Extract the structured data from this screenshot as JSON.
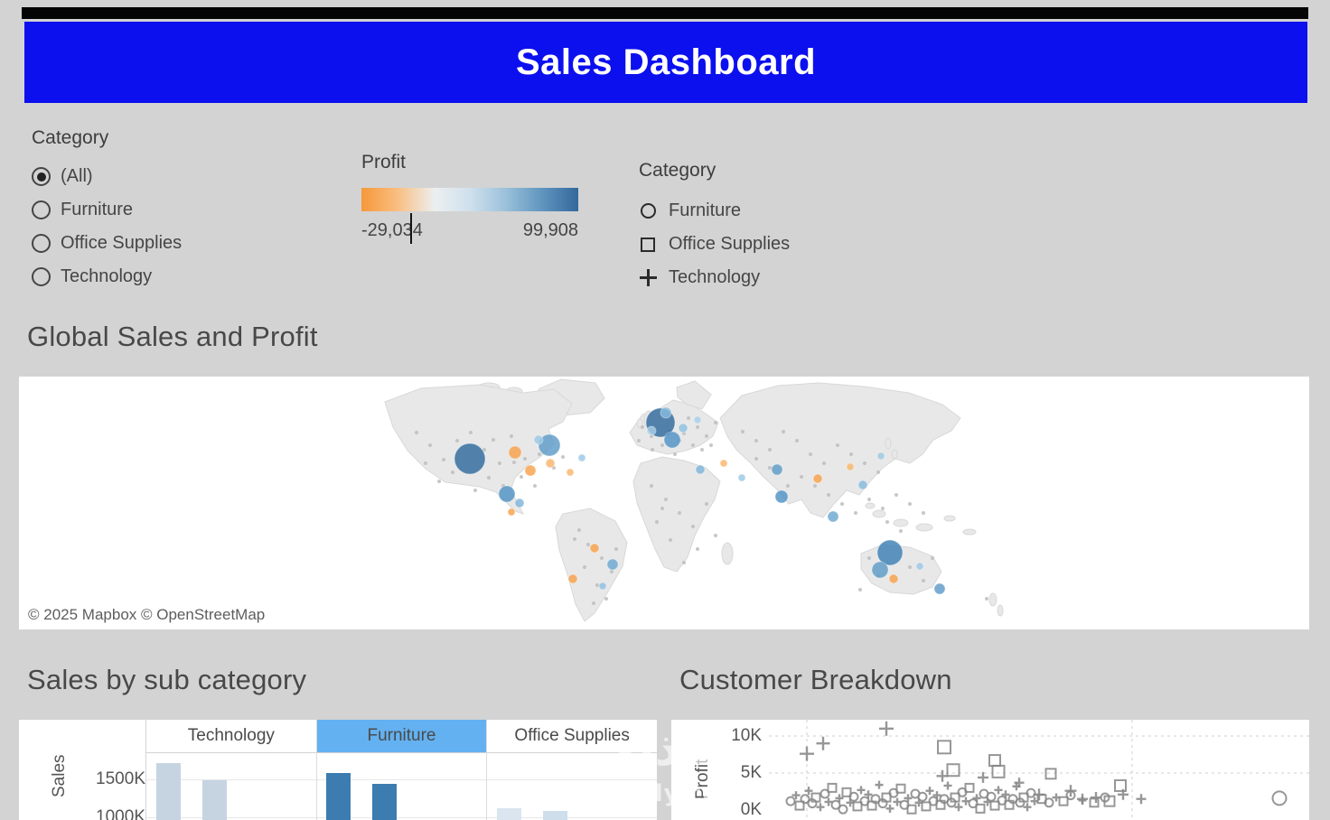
{
  "header": {
    "title": "Sales Dashboard"
  },
  "filters": {
    "category": {
      "label": "Category",
      "options": [
        {
          "label": "(All)",
          "selected": true
        },
        {
          "label": "Furniture",
          "selected": false
        },
        {
          "label": "Office Supplies",
          "selected": false
        },
        {
          "label": "Technology",
          "selected": false
        }
      ]
    },
    "profit": {
      "label": "Profit",
      "min": "-29,034",
      "max": "99,908"
    },
    "shapes": {
      "label": "Category",
      "items": [
        {
          "label": "Furniture",
          "shape": "circle"
        },
        {
          "label": "Office Supplies",
          "shape": "square"
        },
        {
          "label": "Technology",
          "shape": "plus"
        }
      ]
    }
  },
  "sections": {
    "map": {
      "title": "Global Sales and Profit",
      "attribution": "© 2025 Mapbox  © OpenStreetMap"
    },
    "subcategory": {
      "title": "Sales by sub category"
    },
    "breakdown": {
      "title": "Customer Breakdown"
    }
  },
  "watermark": {
    "text": "نفذلي",
    "domain": "nafezly.com"
  },
  "chart_data": [
    {
      "id": "global_sales_profit",
      "type": "map-scatter",
      "title": "Global Sales and Profit",
      "color_scale": {
        "measure": "Profit",
        "min": "-29,034",
        "max": "99,908",
        "negative_color": "#f6a14b",
        "positive_color": "#2f6a9e"
      },
      "bubbles": [
        [
          499,
          91,
          17,
          "#2f6a9e"
        ],
        [
          587,
          76,
          12,
          "#5d9bc7"
        ],
        [
          575,
          70,
          5,
          "#9cc8e4"
        ],
        [
          710,
          51,
          16,
          "#2f6a9e"
        ],
        [
          723,
          70,
          9,
          "#4f93c4"
        ],
        [
          716,
          40,
          6,
          "#86bbdd"
        ],
        [
          700,
          60,
          5,
          "#a9cfe8"
        ],
        [
          735,
          57,
          5,
          "#90c1e0"
        ],
        [
          751,
          48,
          4,
          "#a9cfe8"
        ],
        [
          549,
          84,
          7,
          "#f6a14b"
        ],
        [
          566,
          104,
          6,
          "#f6a14b"
        ],
        [
          588,
          96,
          5,
          "#f8b66e"
        ],
        [
          540,
          130,
          9,
          "#4f93c4"
        ],
        [
          554,
          140,
          5,
          "#7db4d9"
        ],
        [
          545,
          150,
          4,
          "#f6a14b"
        ],
        [
          610,
          106,
          4,
          "#f8b66e"
        ],
        [
          623,
          90,
          4,
          "#9cc8e4"
        ],
        [
          637,
          190,
          5,
          "#f6a14b"
        ],
        [
          657,
          208,
          6,
          "#6aa7d1"
        ],
        [
          613,
          224,
          5,
          "#f6a14b"
        ],
        [
          646,
          232,
          4,
          "#8fc0df"
        ],
        [
          754,
          103,
          5,
          "#7db4d9"
        ],
        [
          780,
          96,
          4,
          "#f8b66e"
        ],
        [
          800,
          112,
          4,
          "#9cc8e4"
        ],
        [
          839,
          103,
          6,
          "#5d9bc7"
        ],
        [
          884,
          113,
          5,
          "#f6a14b"
        ],
        [
          844,
          133,
          7,
          "#4f93c4"
        ],
        [
          901,
          155,
          6,
          "#6aa7d1"
        ],
        [
          934,
          120,
          5,
          "#86bbdd"
        ],
        [
          920,
          100,
          4,
          "#f8b66e"
        ],
        [
          954,
          88,
          4,
          "#9cc8e4"
        ],
        [
          964,
          195,
          14,
          "#3d7fb4"
        ],
        [
          953,
          214,
          9,
          "#5d9bc7"
        ],
        [
          968,
          224,
          5,
          "#f6a14b"
        ],
        [
          1019,
          235,
          6,
          "#5d9bc7"
        ],
        [
          997,
          210,
          4,
          "#9cc8e4"
        ]
      ],
      "city_dots": [
        [
          440,
          62
        ],
        [
          455,
          76
        ],
        [
          470,
          92
        ],
        [
          485,
          71
        ],
        [
          500,
          62
        ],
        [
          515,
          81
        ],
        [
          532,
          96
        ],
        [
          545,
          66
        ],
        [
          520,
          112
        ],
        [
          505,
          126
        ],
        [
          536,
          121
        ],
        [
          560,
          91
        ],
        [
          576,
          86
        ],
        [
          592,
          101
        ],
        [
          602,
          89
        ],
        [
          480,
          106
        ],
        [
          465,
          116
        ],
        [
          450,
          96
        ],
        [
          556,
          111
        ],
        [
          571,
          121
        ],
        [
          525,
          70
        ],
        [
          548,
          95
        ],
        [
          620,
          170
        ],
        [
          630,
          186
        ],
        [
          645,
          201
        ],
        [
          656,
          216
        ],
        [
          640,
          231
        ],
        [
          626,
          211
        ],
        [
          661,
          191
        ],
        [
          650,
          246
        ],
        [
          636,
          251
        ],
        [
          615,
          180
        ],
        [
          690,
          56
        ],
        [
          700,
          66
        ],
        [
          712,
          76
        ],
        [
          720,
          61
        ],
        [
          731,
          71
        ],
        [
          741,
          46
        ],
        [
          751,
          56
        ],
        [
          761,
          66
        ],
        [
          771,
          51
        ],
        [
          746,
          76
        ],
        [
          756,
          81
        ],
        [
          701,
          81
        ],
        [
          686,
          71
        ],
        [
          726,
          86
        ],
        [
          766,
          76
        ],
        [
          736,
          63
        ],
        [
          700,
          121
        ],
        [
          716,
          136
        ],
        [
          731,
          151
        ],
        [
          746,
          166
        ],
        [
          721,
          181
        ],
        [
          706,
          161
        ],
        [
          761,
          141
        ],
        [
          751,
          191
        ],
        [
          736,
          206
        ],
        [
          771,
          176
        ],
        [
          712,
          146
        ],
        [
          801,
          61
        ],
        [
          816,
          71
        ],
        [
          831,
          81
        ],
        [
          846,
          61
        ],
        [
          861,
          71
        ],
        [
          876,
          86
        ],
        [
          891,
          96
        ],
        [
          906,
          76
        ],
        [
          921,
          86
        ],
        [
          936,
          96
        ],
        [
          951,
          106
        ],
        [
          881,
          121
        ],
        [
          896,
          131
        ],
        [
          911,
          141
        ],
        [
          926,
          151
        ],
        [
          866,
          111
        ],
        [
          851,
          121
        ],
        [
          941,
          136
        ],
        [
          956,
          146
        ],
        [
          971,
          131
        ],
        [
          986,
          141
        ],
        [
          1001,
          151
        ],
        [
          961,
          161
        ],
        [
          976,
          171
        ],
        [
          816,
          91
        ],
        [
          831,
          101
        ],
        [
          941,
          201
        ],
        [
          951,
          221
        ],
        [
          986,
          211
        ],
        [
          1001,
          226
        ],
        [
          1011,
          201
        ],
        [
          931,
          236
        ],
        [
          1071,
          246
        ]
      ]
    },
    {
      "id": "sales_by_subcategory",
      "type": "bar",
      "title": "Sales by sub category",
      "ylabel": "Sales",
      "yticks": [
        "1500K",
        "1000K"
      ],
      "ytick_values_k": [
        1500,
        1000
      ],
      "highlight_color": "#63b1f1",
      "panels": [
        {
          "category": "Technology",
          "highlighted": false,
          "values_k": [
            1720,
            1490
          ],
          "bar_colors": [
            "#c6d4e2",
            "#c6d4e2"
          ]
        },
        {
          "category": "Furniture",
          "highlighted": true,
          "values_k": [
            1580,
            1440
          ],
          "bar_colors": [
            "#3c7cb0",
            "#3c7cb0"
          ]
        },
        {
          "category": "Office Supplies",
          "highlighted": false,
          "values_k": [
            1120,
            1080
          ],
          "bar_colors": [
            "#dae5f0",
            "#cfdeeb"
          ]
        }
      ]
    },
    {
      "id": "customer_breakdown",
      "type": "scatter",
      "title": "Customer Breakdown",
      "ylabel": "Profit",
      "yticks": [
        "10K",
        "5K",
        "0K"
      ],
      "ytick_values_k": [
        10,
        5,
        0
      ],
      "marker_color": "#858585",
      "shape_categories": {
        "p": "Technology",
        "s": "Office Supplies",
        "c": "Furniture"
      },
      "points": [
        [
          150,
          7.6,
          "p",
          16
        ],
        [
          168,
          9.0,
          "p",
          15
        ],
        [
          238,
          11.0,
          "p",
          16
        ],
        [
          302,
          8.5,
          "s",
          14
        ],
        [
          312,
          5.4,
          "s",
          13
        ],
        [
          362,
          5.2,
          "s",
          13
        ],
        [
          300,
          4.6,
          "p",
          13
        ],
        [
          345,
          4.4,
          "p",
          12
        ],
        [
          358,
          6.7,
          "s",
          12
        ],
        [
          385,
          3.7,
          "p",
          11
        ],
        [
          407,
          2.1,
          "p",
          13
        ],
        [
          420,
          4.9,
          "s",
          11
        ],
        [
          442,
          2.6,
          "p",
          13
        ],
        [
          455,
          1.5,
          "p",
          12
        ],
        [
          470,
          1.7,
          "p",
          12
        ],
        [
          485,
          1.2,
          "s",
          11
        ],
        [
          497,
          3.3,
          "s",
          12
        ],
        [
          500,
          2.1,
          "p",
          12
        ],
        [
          520,
          1.5,
          "p",
          11
        ],
        [
          673,
          1.6,
          "c",
          15
        ],
        [
          132,
          1.2,
          "c"
        ],
        [
          138,
          2.0,
          "p"
        ],
        [
          142,
          0.6,
          "s"
        ],
        [
          148,
          1.5,
          "c"
        ],
        [
          152,
          2.6,
          "p"
        ],
        [
          156,
          0.9,
          "c"
        ],
        [
          160,
          1.7,
          "s"
        ],
        [
          165,
          0.4,
          "p"
        ],
        [
          170,
          2.2,
          "c"
        ],
        [
          174,
          1.1,
          "p"
        ],
        [
          178,
          3.0,
          "s"
        ],
        [
          182,
          0.7,
          "c"
        ],
        [
          186,
          1.6,
          "p"
        ],
        [
          190,
          0.1,
          "c"
        ],
        [
          194,
          2.4,
          "s"
        ],
        [
          198,
          1.0,
          "p"
        ],
        [
          202,
          1.8,
          "c"
        ],
        [
          206,
          0.5,
          "s"
        ],
        [
          210,
          2.7,
          "p"
        ],
        [
          214,
          1.2,
          "c"
        ],
        [
          218,
          2.1,
          "p"
        ],
        [
          222,
          0.6,
          "s"
        ],
        [
          226,
          1.5,
          "c"
        ],
        [
          230,
          3.4,
          "p"
        ],
        [
          234,
          0.9,
          "c"
        ],
        [
          238,
          1.7,
          "s"
        ],
        [
          242,
          0.2,
          "p"
        ],
        [
          246,
          2.3,
          "c"
        ],
        [
          250,
          1.1,
          "p"
        ],
        [
          254,
          2.9,
          "s"
        ],
        [
          258,
          0.7,
          "c"
        ],
        [
          262,
          1.6,
          "p"
        ],
        [
          266,
          0.1,
          "s"
        ],
        [
          270,
          2.2,
          "c"
        ],
        [
          274,
          1.0,
          "p"
        ],
        [
          278,
          1.8,
          "c"
        ],
        [
          282,
          0.5,
          "s"
        ],
        [
          286,
          2.6,
          "p"
        ],
        [
          290,
          1.2,
          "c"
        ],
        [
          294,
          2.0,
          "p"
        ],
        [
          298,
          0.7,
          "s"
        ],
        [
          302,
          1.5,
          "c"
        ],
        [
          306,
          3.3,
          "p"
        ],
        [
          310,
          1.0,
          "c"
        ],
        [
          314,
          1.7,
          "s"
        ],
        [
          318,
          0.4,
          "p"
        ],
        [
          322,
          2.4,
          "c"
        ],
        [
          326,
          1.2,
          "p"
        ],
        [
          330,
          3.0,
          "s"
        ],
        [
          334,
          0.9,
          "c"
        ],
        [
          338,
          1.6,
          "p"
        ],
        [
          342,
          0.2,
          "s"
        ],
        [
          346,
          2.2,
          "c"
        ],
        [
          350,
          1.1,
          "p"
        ],
        [
          354,
          1.8,
          "c"
        ],
        [
          358,
          0.6,
          "s"
        ],
        [
          362,
          2.7,
          "p"
        ],
        [
          366,
          1.3,
          "c"
        ],
        [
          370,
          2.1,
          "p"
        ],
        [
          374,
          0.7,
          "s"
        ],
        [
          378,
          1.5,
          "c"
        ],
        [
          382,
          3.2,
          "p"
        ],
        [
          386,
          1.0,
          "c"
        ],
        [
          390,
          1.7,
          "s"
        ],
        [
          394,
          0.4,
          "p"
        ],
        [
          398,
          2.3,
          "c"
        ],
        [
          402,
          1.2,
          "p"
        ],
        [
          410,
          1.5,
          "s"
        ],
        [
          418,
          1.0,
          "c"
        ],
        [
          426,
          1.7,
          "p"
        ],
        [
          434,
          1.2,
          "s"
        ],
        [
          442,
          2.0,
          "c"
        ],
        [
          455,
          1.3,
          "p"
        ],
        [
          468,
          1.0,
          "s"
        ],
        [
          480,
          1.7,
          "c"
        ]
      ]
    }
  ]
}
